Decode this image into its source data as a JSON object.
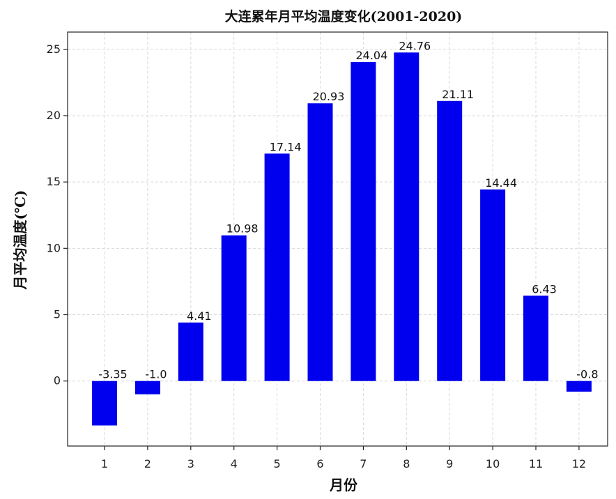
{
  "chart_data": {
    "type": "bar",
    "title": "大连累年月平均温度变化(2001-2020)",
    "xlabel": "月份",
    "ylabel": "月平均温度(℃)",
    "categories": [
      "1",
      "2",
      "3",
      "4",
      "5",
      "6",
      "7",
      "8",
      "9",
      "10",
      "11",
      "12"
    ],
    "values": [
      -3.35,
      -1.0,
      4.41,
      10.98,
      17.14,
      20.93,
      24.04,
      24.76,
      21.11,
      14.44,
      6.43,
      -0.8
    ],
    "data_labels": [
      "-3.35",
      "-1.0",
      "4.41",
      "10.98",
      "17.14",
      "20.93",
      "24.04",
      "24.76",
      "21.11",
      "14.44",
      "6.43",
      "-0.8"
    ],
    "yticks": [
      0,
      5,
      10,
      15,
      20,
      25
    ],
    "ylim": [
      -4.9,
      26.3
    ],
    "grid": true,
    "bar_color": "#0000ee"
  }
}
